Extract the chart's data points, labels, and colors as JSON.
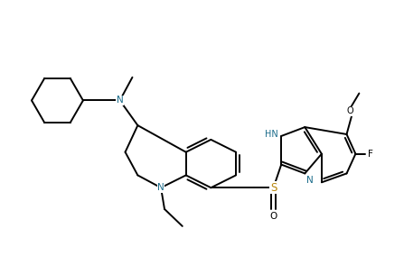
{
  "background_color": "#ffffff",
  "line_color": "#000000",
  "S_color": "#b8860b",
  "N_color": "#1a6b8a",
  "line_width": 1.4,
  "figsize": [
    4.47,
    2.94
  ],
  "dpi": 100,
  "xlim": [
    0,
    11
  ],
  "ylim": [
    0,
    7.3
  ]
}
